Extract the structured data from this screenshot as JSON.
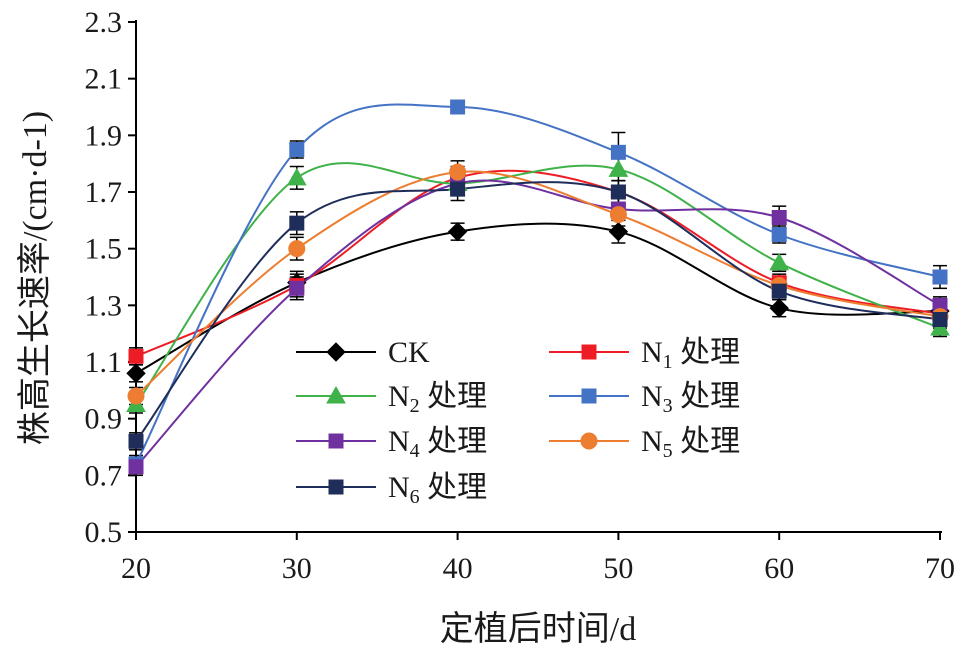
{
  "chart_data": {
    "type": "line",
    "smooth": true,
    "xlabel": "定植后时间/d",
    "ylabel": "株高生长速率/(cm·d-1)",
    "xlim": [
      20,
      70
    ],
    "ylim": [
      0.5,
      2.3
    ],
    "x_ticks": [
      "20",
      "30",
      "40",
      "50",
      "60",
      "70"
    ],
    "y_ticks": [
      "0.5",
      "0.7",
      "0.9",
      "1.1",
      "1.3",
      "1.5",
      "1.7",
      "1.9",
      "2.1",
      "2.3"
    ],
    "x": [
      20,
      30,
      40,
      50,
      60,
      70
    ],
    "grid": false,
    "legend_placement": "inside-bottom-center",
    "series": [
      {
        "name": "CK",
        "sub": "",
        "suffix": "",
        "marker": "diamond",
        "color": "#000000",
        "values": [
          1.06,
          1.38,
          1.56,
          1.56,
          1.29,
          1.28
        ],
        "errors": [
          0.03,
          0.04,
          0.03,
          0.04,
          0.03,
          0.03
        ]
      },
      {
        "name": "N",
        "sub": "1",
        "suffix": " 处理",
        "marker": "square",
        "color": "#ee1c24",
        "values": [
          1.12,
          1.37,
          1.75,
          1.7,
          1.38,
          1.27
        ],
        "errors": [
          0.03,
          0.04,
          0.04,
          0.04,
          0.03,
          0.03
        ]
      },
      {
        "name": "N",
        "sub": "2",
        "suffix": " 处理",
        "marker": "triangle",
        "color": "#3fb24a",
        "values": [
          0.95,
          1.75,
          1.73,
          1.78,
          1.45,
          1.22
        ],
        "errors": [
          0.03,
          0.04,
          0.04,
          0.04,
          0.03,
          0.03
        ]
      },
      {
        "name": "N",
        "sub": "3",
        "suffix": " 处理",
        "marker": "square",
        "color": "#4472c4",
        "values": [
          0.74,
          1.85,
          2.0,
          1.84,
          1.55,
          1.4
        ],
        "errors": [
          0.03,
          0.03,
          0.02,
          0.07,
          0.03,
          0.04
        ]
      },
      {
        "name": "N",
        "sub": "4",
        "suffix": " 处理",
        "marker": "square",
        "color": "#7030a0",
        "values": [
          0.73,
          1.36,
          1.73,
          1.64,
          1.61,
          1.3
        ],
        "errors": [
          0.03,
          0.04,
          0.04,
          0.04,
          0.04,
          0.03
        ]
      },
      {
        "name": "N",
        "sub": "5",
        "suffix": " 处理",
        "marker": "circle",
        "color": "#ed7d31",
        "values": [
          0.98,
          1.5,
          1.77,
          1.62,
          1.37,
          1.26
        ],
        "errors": [
          0.03,
          0.04,
          0.04,
          0.04,
          0.03,
          0.03
        ]
      },
      {
        "name": "N",
        "sub": "6",
        "suffix": " 处理",
        "marker": "square",
        "color": "#1f2d5a",
        "values": [
          0.82,
          1.59,
          1.71,
          1.7,
          1.35,
          1.25
        ],
        "errors": [
          0.03,
          0.04,
          0.04,
          0.04,
          0.03,
          0.03
        ]
      }
    ]
  }
}
